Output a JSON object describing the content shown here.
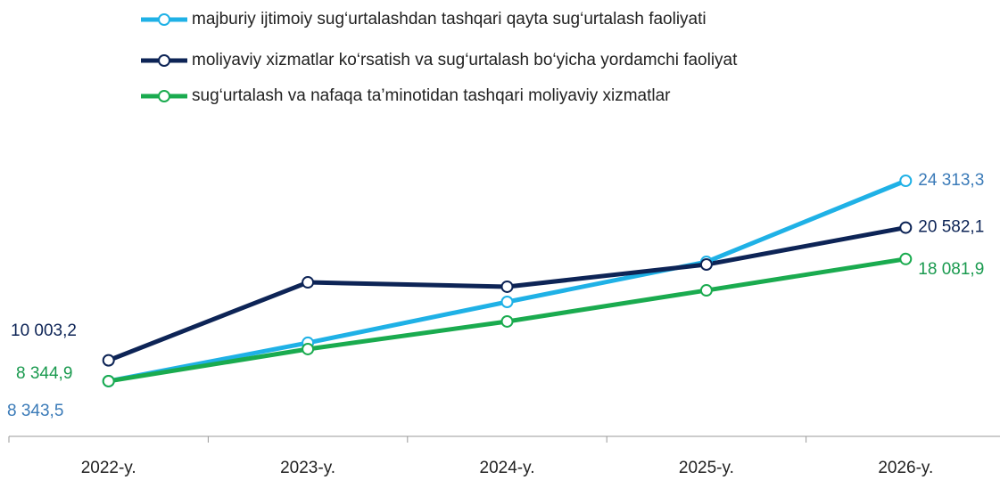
{
  "chart_data": {
    "type": "line",
    "categories": [
      "2022-y.",
      "2023-y.",
      "2024-y.",
      "2025-y.",
      "2026-y."
    ],
    "series": [
      {
        "name": "majburiy ijtimoiy sug‘urtalashdan tashqari qayta sug‘urtalash faoliyati",
        "color": "#1fb1e6",
        "label_color": "#3b7bb8",
        "values": [
          8343.5,
          11400,
          14660,
          17850,
          24313.3
        ],
        "value_labels": [
          "8 343,5",
          null,
          null,
          null,
          "24 313,3"
        ]
      },
      {
        "name": "moliyaviy xizmatlar ko‘rsatish va sug‘urtalash bo‘yicha yordamchi faoliyat",
        "color": "#0d2456",
        "label_color": "#0d2456",
        "values": [
          10003.2,
          16220,
          15870,
          17640,
          20582.1
        ],
        "value_labels": [
          "10 003,2",
          null,
          null,
          null,
          "20 582,1"
        ]
      },
      {
        "name": "sug‘urtalash va nafaqa ta’minotidan tashqari moliyaviy xizmatlar",
        "color": "#1aab4f",
        "label_color": "#1a9a4f",
        "values": [
          8344.9,
          10900,
          13100,
          15580,
          18081.9
        ],
        "value_labels": [
          "8 344,9",
          null,
          null,
          null,
          "18 081,9"
        ]
      }
    ]
  }
}
